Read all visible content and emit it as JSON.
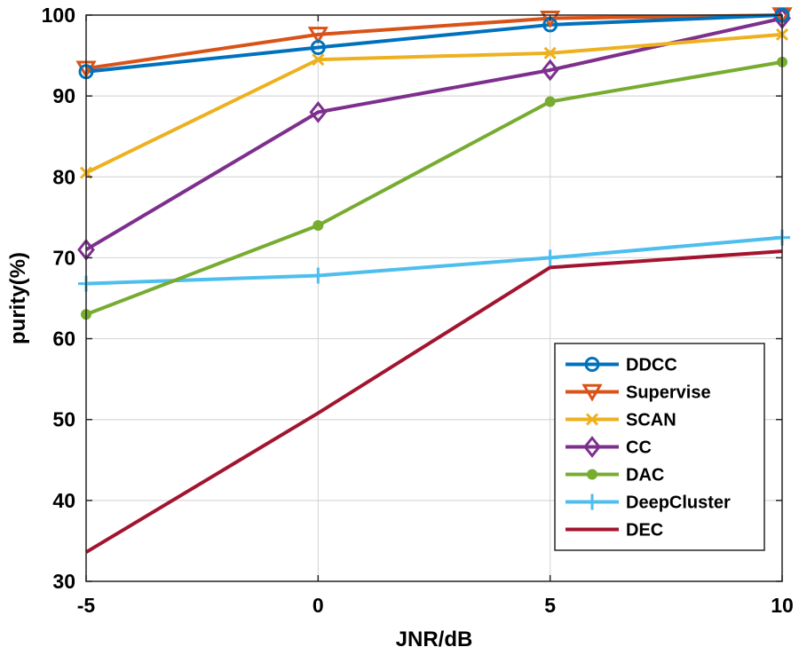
{
  "chart_data": {
    "type": "line",
    "title": "",
    "xlabel": "JNR/dB",
    "ylabel": "purity(%)",
    "x": [
      -5,
      0,
      5,
      10
    ],
    "xlim": [
      -5,
      10
    ],
    "ylim": [
      30,
      100
    ],
    "xticks": [
      -5,
      0,
      5,
      10
    ],
    "yticks": [
      30,
      40,
      50,
      60,
      70,
      80,
      90,
      100
    ],
    "xtick_labels": [
      "-5",
      "0",
      "5",
      "10"
    ],
    "ytick_labels": [
      "30",
      "40",
      "50",
      "60",
      "70",
      "80",
      "90",
      "100"
    ],
    "grid": true,
    "legend_position": "bottom-right",
    "series": [
      {
        "name": "DDCC",
        "values": [
          93.0,
          96.0,
          98.8,
          100.0
        ],
        "color": "#0072BD",
        "marker": "circle"
      },
      {
        "name": "Supervise",
        "values": [
          93.4,
          97.6,
          99.6,
          100.0
        ],
        "color": "#D95319",
        "marker": "triangle-down"
      },
      {
        "name": "SCAN",
        "values": [
          80.5,
          94.5,
          95.3,
          97.6
        ],
        "color": "#EDB120",
        "marker": "x"
      },
      {
        "name": "CC",
        "values": [
          71.0,
          88.0,
          93.2,
          99.6
        ],
        "color": "#7E2F8E",
        "marker": "diamond"
      },
      {
        "name": "DAC",
        "values": [
          63.0,
          74.0,
          89.3,
          94.2
        ],
        "color": "#77AC30",
        "marker": "dot"
      },
      {
        "name": "DeepCluster",
        "values": [
          66.8,
          67.8,
          70.0,
          72.5
        ],
        "color": "#4DBEEE",
        "marker": "plus"
      },
      {
        "name": "DEC",
        "values": [
          33.6,
          50.8,
          68.8,
          70.8
        ],
        "color": "#A2142F",
        "marker": "none"
      }
    ]
  }
}
